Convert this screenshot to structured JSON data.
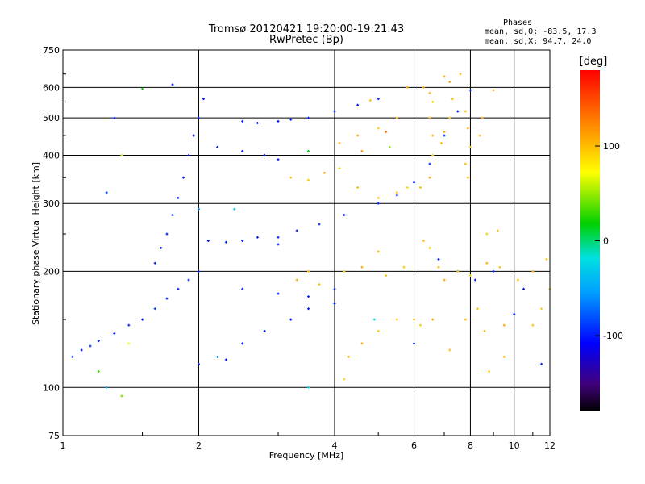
{
  "chart_data": {
    "type": "scatter",
    "title": "Tromsø 20120421 19:20:00-19:21:43",
    "subtitle": "RwPretec (Bp)",
    "xlabel": "Frequency [MHz]",
    "ylabel": "Stationary phase Virtual Height [km]",
    "x_scale": "log",
    "y_scale": "log",
    "xlim": [
      1,
      12
    ],
    "ylim": [
      75,
      750
    ],
    "x_ticks": [
      1,
      2,
      4,
      6,
      8,
      10,
      12
    ],
    "y_ticks": [
      75,
      100,
      200,
      300,
      400,
      500,
      600,
      750
    ],
    "grid": true,
    "phase_box": {
      "title": "Phases",
      "line1": "mean, sd,O: -83.5, 17.3",
      "line2": "mean, sd,X:  94.7, 24.0"
    },
    "colorbar": {
      "label": "[deg]",
      "range": [
        -180,
        180
      ],
      "ticks": [
        100,
        0,
        -100
      ]
    },
    "series": [
      {
        "points": [
          [
            1.05,
            120,
            -95
          ],
          [
            1.1,
            125,
            -100
          ],
          [
            1.15,
            128,
            -90
          ],
          [
            1.2,
            132,
            -95
          ],
          [
            1.3,
            138,
            -100
          ],
          [
            1.4,
            145,
            -95
          ],
          [
            1.5,
            150,
            -100
          ],
          [
            1.6,
            160,
            -90
          ],
          [
            1.7,
            170,
            -95
          ],
          [
            1.8,
            180,
            -100
          ],
          [
            1.9,
            190,
            -95
          ],
          [
            2.0,
            200,
            -100
          ],
          [
            1.6,
            210,
            -100
          ],
          [
            1.65,
            230,
            -95
          ],
          [
            1.7,
            250,
            -100
          ],
          [
            1.75,
            280,
            -95
          ],
          [
            1.8,
            310,
            -100
          ],
          [
            1.85,
            350,
            -95
          ],
          [
            1.9,
            400,
            -100
          ],
          [
            1.95,
            450,
            -95
          ],
          [
            2.0,
            500,
            -100
          ],
          [
            2.05,
            560,
            -95
          ],
          [
            1.75,
            610,
            -100
          ],
          [
            2.1,
            240,
            -100
          ],
          [
            2.3,
            238,
            -95
          ],
          [
            2.5,
            240,
            -100
          ],
          [
            2.7,
            245,
            -95
          ],
          [
            3.0,
            235,
            -100
          ],
          [
            2.2,
            420,
            -95
          ],
          [
            2.5,
            410,
            -100
          ],
          [
            2.8,
            400,
            -95
          ],
          [
            3.0,
            390,
            -100
          ],
          [
            2.5,
            490,
            -100
          ],
          [
            2.7,
            485,
            -95
          ],
          [
            3.0,
            490,
            -100
          ],
          [
            3.2,
            495,
            -95
          ],
          [
            3.5,
            500,
            -100
          ],
          [
            4.0,
            520,
            -95
          ],
          [
            4.5,
            540,
            -100
          ],
          [
            5.0,
            560,
            -95
          ],
          [
            3.0,
            245,
            -95
          ],
          [
            3.3,
            255,
            -100
          ],
          [
            3.7,
            265,
            -95
          ],
          [
            4.2,
            280,
            -100
          ],
          [
            5.0,
            300,
            -95
          ],
          [
            5.5,
            315,
            -90
          ],
          [
            6.0,
            340,
            -95
          ],
          [
            6.5,
            380,
            -90
          ],
          [
            7.0,
            450,
            -95
          ],
          [
            7.5,
            520,
            -100
          ],
          [
            8.0,
            590,
            -95
          ],
          [
            2.5,
            180,
            -100
          ],
          [
            3.0,
            175,
            -95
          ],
          [
            3.5,
            172,
            -100
          ],
          [
            4.0,
            180,
            -95
          ],
          [
            3.5,
            160,
            -100
          ],
          [
            4.0,
            165,
            -95
          ],
          [
            2.5,
            130,
            -100
          ],
          [
            2.8,
            140,
            -95
          ],
          [
            3.2,
            150,
            -100
          ],
          [
            2.0,
            115,
            -95
          ],
          [
            2.3,
            118,
            -100
          ],
          [
            6.8,
            215,
            -100
          ],
          [
            7.5,
            200,
            -95
          ],
          [
            8.2,
            190,
            -100
          ],
          [
            9.0,
            200,
            -95
          ],
          [
            10.5,
            180,
            -100
          ],
          [
            11.5,
            115,
            -95
          ],
          [
            10.0,
            155,
            -100
          ],
          [
            6.0,
            130,
            -95
          ],
          [
            3.2,
            350,
            100
          ],
          [
            3.5,
            345,
            95
          ],
          [
            3.8,
            360,
            110
          ],
          [
            4.1,
            370,
            90
          ],
          [
            4.5,
            330,
            100
          ],
          [
            5.0,
            310,
            95
          ],
          [
            5.5,
            320,
            105
          ],
          [
            5.8,
            330,
            90
          ],
          [
            4.1,
            430,
            100
          ],
          [
            4.5,
            450,
            110
          ],
          [
            5.0,
            470,
            95
          ],
          [
            5.5,
            500,
            100
          ],
          [
            5.2,
            460,
            130
          ],
          [
            4.6,
            410,
            120
          ],
          [
            3.3,
            190,
            110
          ],
          [
            3.5,
            200,
            105
          ],
          [
            3.7,
            185,
            100
          ],
          [
            4.2,
            200,
            95
          ],
          [
            4.6,
            205,
            110
          ],
          [
            5.2,
            195,
            100
          ],
          [
            5.7,
            205,
            95
          ],
          [
            5.0,
            225,
            105
          ],
          [
            4.3,
            120,
            100
          ],
          [
            4.6,
            130,
            110
          ],
          [
            5.0,
            140,
            95
          ],
          [
            5.5,
            150,
            100
          ],
          [
            4.2,
            105,
            90
          ],
          [
            6.3,
            600,
            110
          ],
          [
            6.5,
            580,
            100
          ],
          [
            6.6,
            550,
            95
          ],
          [
            6.5,
            500,
            105
          ],
          [
            6.6,
            450,
            100
          ],
          [
            6.6,
            400,
            95
          ],
          [
            6.5,
            350,
            110
          ],
          [
            6.2,
            330,
            100
          ],
          [
            7.0,
            640,
            105
          ],
          [
            7.2,
            620,
            110
          ],
          [
            7.3,
            560,
            100
          ],
          [
            7.2,
            500,
            95
          ],
          [
            7.0,
            460,
            105
          ],
          [
            6.9,
            430,
            100
          ],
          [
            7.8,
            520,
            100
          ],
          [
            7.9,
            470,
            110
          ],
          [
            8.0,
            420,
            95
          ],
          [
            7.8,
            380,
            100
          ],
          [
            7.9,
            350,
            105
          ],
          [
            8.4,
            450,
            100
          ],
          [
            8.5,
            500,
            110
          ],
          [
            6.3,
            240,
            100
          ],
          [
            6.5,
            230,
            95
          ],
          [
            6.8,
            205,
            100
          ],
          [
            7.0,
            190,
            110
          ],
          [
            7.5,
            200,
            100
          ],
          [
            8.0,
            195,
            95
          ],
          [
            8.7,
            210,
            105
          ],
          [
            9.3,
            205,
            100
          ],
          [
            6.0,
            150,
            100
          ],
          [
            6.2,
            145,
            95
          ],
          [
            6.6,
            150,
            110
          ],
          [
            7.8,
            150,
            100
          ],
          [
            8.3,
            160,
            95
          ],
          [
            8.6,
            140,
            100
          ],
          [
            9.5,
            145,
            110
          ],
          [
            11.0,
            145,
            100
          ],
          [
            11.5,
            160,
            95
          ],
          [
            7.2,
            125,
            100
          ],
          [
            8.8,
            110,
            95
          ],
          [
            9.5,
            120,
            105
          ],
          [
            10.2,
            190,
            100
          ],
          [
            11.0,
            200,
            110
          ],
          [
            11.8,
            215,
            95
          ],
          [
            12.0,
            180,
            100
          ],
          [
            8.7,
            250,
            95
          ],
          [
            9.2,
            255,
            100
          ],
          [
            7.6,
            650,
            100
          ],
          [
            9.0,
            590,
            105
          ],
          [
            5.8,
            600,
            110
          ],
          [
            4.8,
            555,
            100
          ],
          [
            2.0,
            290,
            -70
          ],
          [
            2.4,
            290,
            -40
          ],
          [
            1.5,
            595,
            20
          ],
          [
            3.5,
            410,
            15
          ],
          [
            4.9,
            150,
            -20
          ],
          [
            5.3,
            420,
            50
          ],
          [
            2.2,
            120,
            -60
          ],
          [
            1.2,
            110,
            30
          ],
          [
            1.25,
            100,
            -50
          ],
          [
            1.35,
            95,
            40
          ],
          [
            1.4,
            130,
            70
          ],
          [
            3.5,
            100,
            -30
          ],
          [
            1.3,
            500,
            -110
          ],
          [
            1.35,
            400,
            60
          ],
          [
            1.25,
            320,
            -80
          ]
        ]
      }
    ]
  }
}
